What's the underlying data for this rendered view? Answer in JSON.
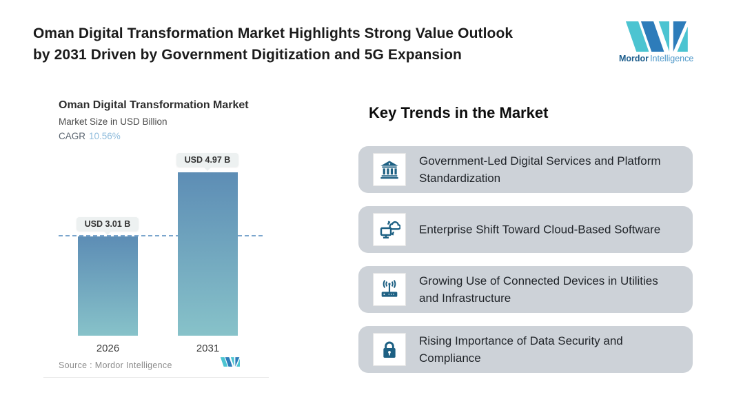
{
  "header": {
    "title_line1": "Oman Digital Transformation Market Highlights Strong Value Outlook",
    "title_line2": "by 2031 Driven by Government Digitization and 5G Expansion",
    "brand_bold": "Mordor",
    "brand_light": "Intelligence"
  },
  "chart": {
    "title": "Oman Digital Transformation Market",
    "subtitle": "Market Size in USD Billion",
    "cagr_label": "CAGR",
    "cagr_value": "10.56%",
    "source_label": "Source :",
    "source_value": "Mordor Intelligence"
  },
  "chart_data": {
    "type": "bar",
    "title": "Oman Digital Transformation Market",
    "ylabel": "Market Size in USD Billion",
    "cagr": "10.56%",
    "categories": [
      "2026",
      "2031"
    ],
    "values": [
      3.01,
      4.97
    ],
    "value_labels": [
      "USD 3.01 B",
      "USD 4.97 B"
    ],
    "ylim": [
      0,
      5.8
    ],
    "grid": false,
    "annotations": [
      "horizontal dashed reference line at 2026 value (3.01)"
    ],
    "bar_gradient": [
      "#5d8db5",
      "#87c2c9"
    ]
  },
  "trends": {
    "heading": "Key Trends in the Market",
    "items": [
      {
        "icon": "bank-icon",
        "text": "Government-Led Digital Services and Platform Standardization"
      },
      {
        "icon": "cloud-sync-icon",
        "text": "Enterprise Shift Toward Cloud-Based Software"
      },
      {
        "icon": "router-icon",
        "text": "Growing Use of Connected Devices in Utilities and Infrastructure"
      },
      {
        "icon": "lock-icon",
        "text": "Rising Importance of Data Security and Compliance"
      }
    ]
  },
  "colors": {
    "logo_teal": "#4cc4d1",
    "logo_blue": "#2d7cba",
    "icon_blue": "#1d6083",
    "card_bg": "#cdd2d8",
    "cagr_value": "#8fbcdc",
    "dashed_line": "#7ba6cd",
    "bubble_bg": "#edf1f1",
    "bar_top": "#5d8db5",
    "bar_bottom": "#87c2c9"
  }
}
